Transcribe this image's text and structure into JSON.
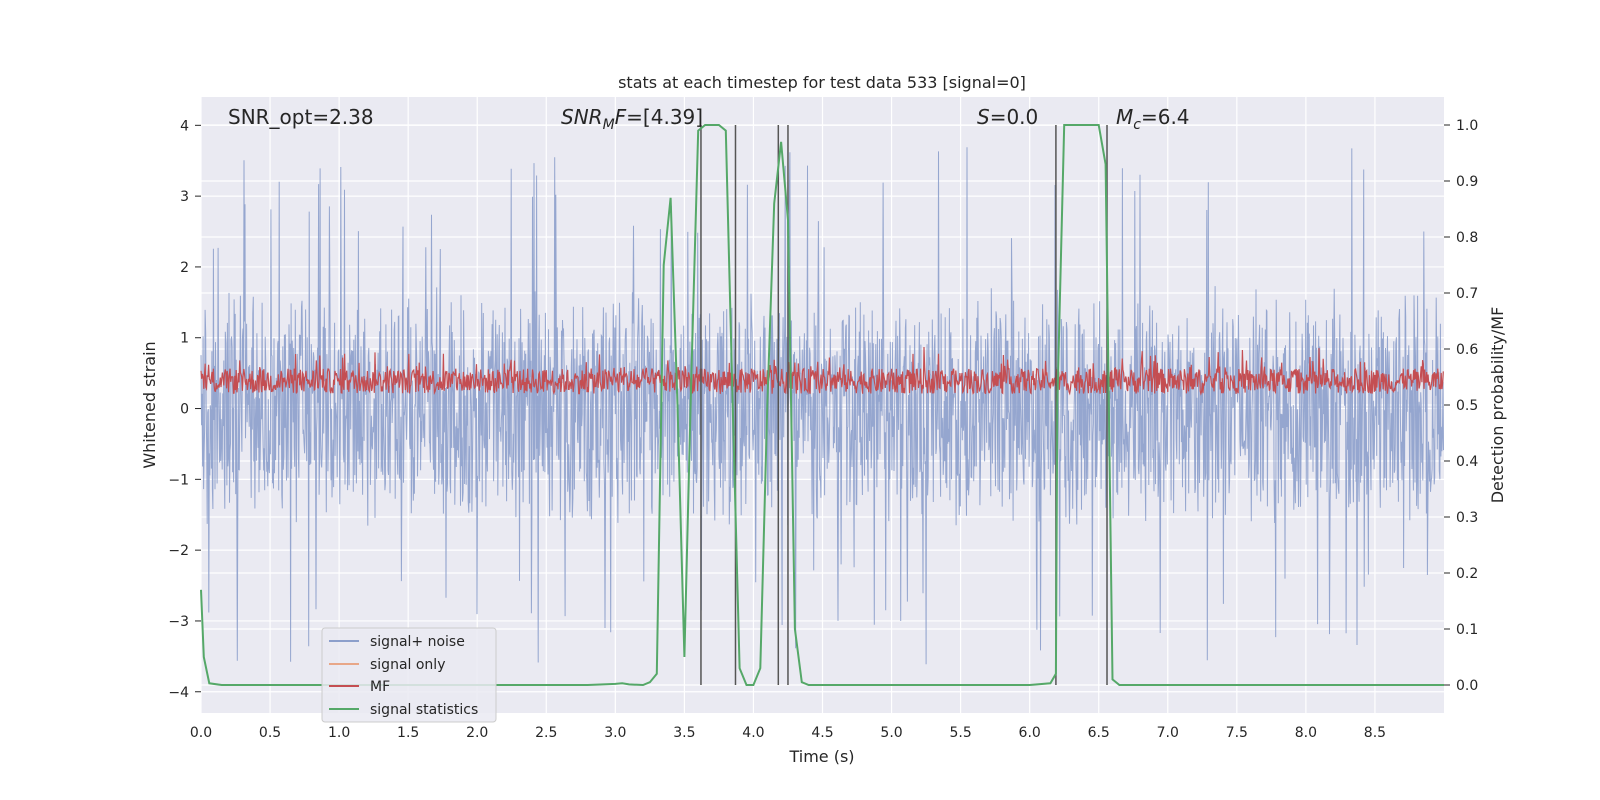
{
  "chart_data": {
    "type": "line",
    "title": "stats at each timestep for test data 533 [signal=0]",
    "xlabel": "Time (s)",
    "ylabel": "Whitened strain",
    "y2label": "Detection probability/MF",
    "xlim": [
      0.0,
      9.0
    ],
    "ylim": [
      -4.3,
      4.4
    ],
    "y2lim": [
      -0.05,
      1.05
    ],
    "xticks": [
      "0.0",
      "0.5",
      "1.0",
      "1.5",
      "2.0",
      "2.5",
      "3.0",
      "3.5",
      "4.0",
      "4.5",
      "5.0",
      "5.5",
      "6.0",
      "6.5",
      "7.0",
      "7.5",
      "8.0",
      "8.5"
    ],
    "yticks": [
      "4",
      "3",
      "2",
      "1",
      "0",
      "−1",
      "−2",
      "−3",
      "−4"
    ],
    "y2ticks": [
      "1.0",
      "0.9",
      "0.8",
      "0.7",
      "0.6",
      "0.5",
      "0.4",
      "0.3",
      "0.2",
      "0.1",
      "0.0"
    ],
    "grid": true,
    "legend_position": "lower-left",
    "annotations": {
      "snr_opt": "SNR_opt=2.38",
      "snr_mf": "=[4.39]",
      "snr_mf_sym": "SNR",
      "snr_mf_sub": "M",
      "snr_mf_f": "F",
      "s_sym": "S",
      "s_val": "=0.0",
      "mc_sym": "M",
      "mc_sub": "c",
      "mc_val": "=6.4"
    },
    "vlines_x": [
      3.62,
      3.87,
      4.18,
      4.25,
      6.19,
      6.56
    ],
    "series": [
      {
        "name": "signal+ noise",
        "color": "#8c9fcb",
        "axis": "left",
        "description": "whitened strain noise, approx uniform band -1.5..1.5 with spikes to +/-3.9"
      },
      {
        "name": "signal only",
        "color": "#e8a788",
        "axis": "left",
        "values": []
      },
      {
        "name": "MF",
        "color": "#c44e52",
        "axis": "right",
        "description": "matched filter around 0.5 to 0.6"
      },
      {
        "name": "signal statistics",
        "color": "#55a868",
        "axis": "right",
        "x": [
          0.0,
          0.02,
          0.06,
          0.15,
          0.4,
          1.0,
          2.0,
          2.8,
          3.0,
          3.05,
          3.1,
          3.2,
          3.25,
          3.3,
          3.35,
          3.4,
          3.45,
          3.5,
          3.55,
          3.6,
          3.65,
          3.7,
          3.75,
          3.8,
          3.85,
          3.9,
          3.95,
          4.0,
          4.05,
          4.1,
          4.15,
          4.2,
          4.25,
          4.3,
          4.35,
          4.4,
          4.45,
          4.5,
          5.0,
          5.5,
          6.0,
          6.15,
          6.19,
          6.2,
          6.25,
          6.3,
          6.4,
          6.5,
          6.55,
          6.6,
          6.65,
          6.7,
          7.0,
          8.0,
          9.0
        ],
        "y": [
          0.17,
          0.05,
          0.003,
          0.0,
          0.0,
          0.0,
          0.0,
          0.0,
          0.002,
          0.003,
          0.001,
          0.0,
          0.005,
          0.02,
          0.75,
          0.87,
          0.5,
          0.05,
          0.55,
          0.99,
          1.0,
          1.0,
          1.0,
          0.99,
          0.5,
          0.03,
          0.0,
          0.0,
          0.03,
          0.5,
          0.86,
          0.97,
          0.83,
          0.1,
          0.005,
          0.0,
          0.0,
          0.0,
          0.0,
          0.0,
          0.0,
          0.003,
          0.02,
          0.5,
          1.0,
          1.0,
          1.0,
          1.0,
          0.93,
          0.01,
          0.0,
          0.0,
          0.0,
          0.0,
          0.0
        ]
      }
    ]
  }
}
